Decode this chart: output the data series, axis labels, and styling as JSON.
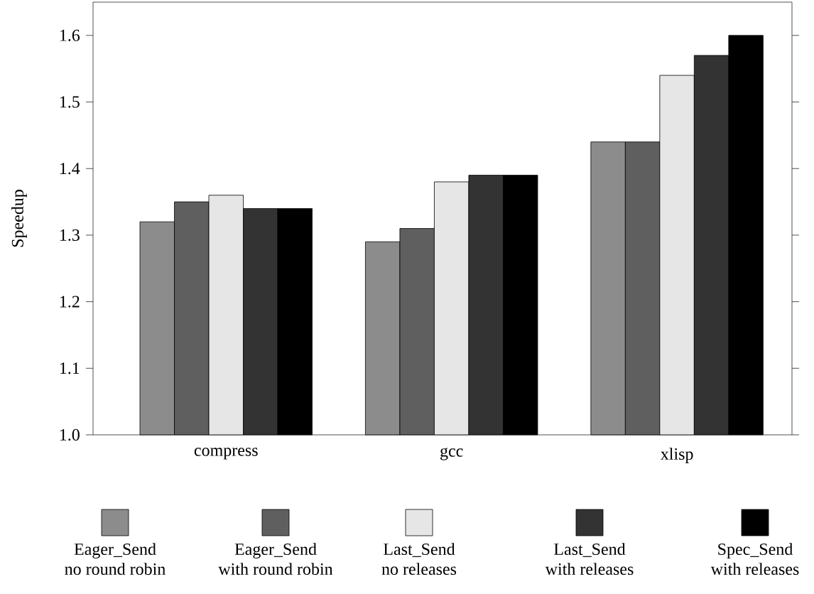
{
  "chart_data": {
    "type": "bar",
    "ylabel": "Speedup",
    "categories": [
      "compress",
      "gcc",
      "xlisp"
    ],
    "series": [
      {
        "name": "Eager_Send\nno  round robin",
        "color": "#8c8c8c",
        "values": [
          1.32,
          1.29,
          1.44
        ]
      },
      {
        "name": "Eager_Send\nwith round robin",
        "color": "#5f5f5f",
        "values": [
          1.35,
          1.31,
          1.44
        ]
      },
      {
        "name": "Last_Send\nno releases",
        "color": "#e6e6e6",
        "values": [
          1.36,
          1.38,
          1.54
        ]
      },
      {
        "name": "Last_Send\nwith releases",
        "color": "#333333",
        "values": [
          1.34,
          1.39,
          1.57
        ]
      },
      {
        "name": "Spec_Send\nwith releases",
        "color": "#000000",
        "values": [
          1.34,
          1.39,
          1.6
        ]
      }
    ],
    "ylim": [
      1.0,
      1.65
    ],
    "yticks": [
      {
        "value": 1.0,
        "label": "1.0"
      },
      1.1,
      1.2,
      1.3,
      1.4,
      1.5,
      1.6
    ],
    "legend": "bottom",
    "grid": false
  }
}
